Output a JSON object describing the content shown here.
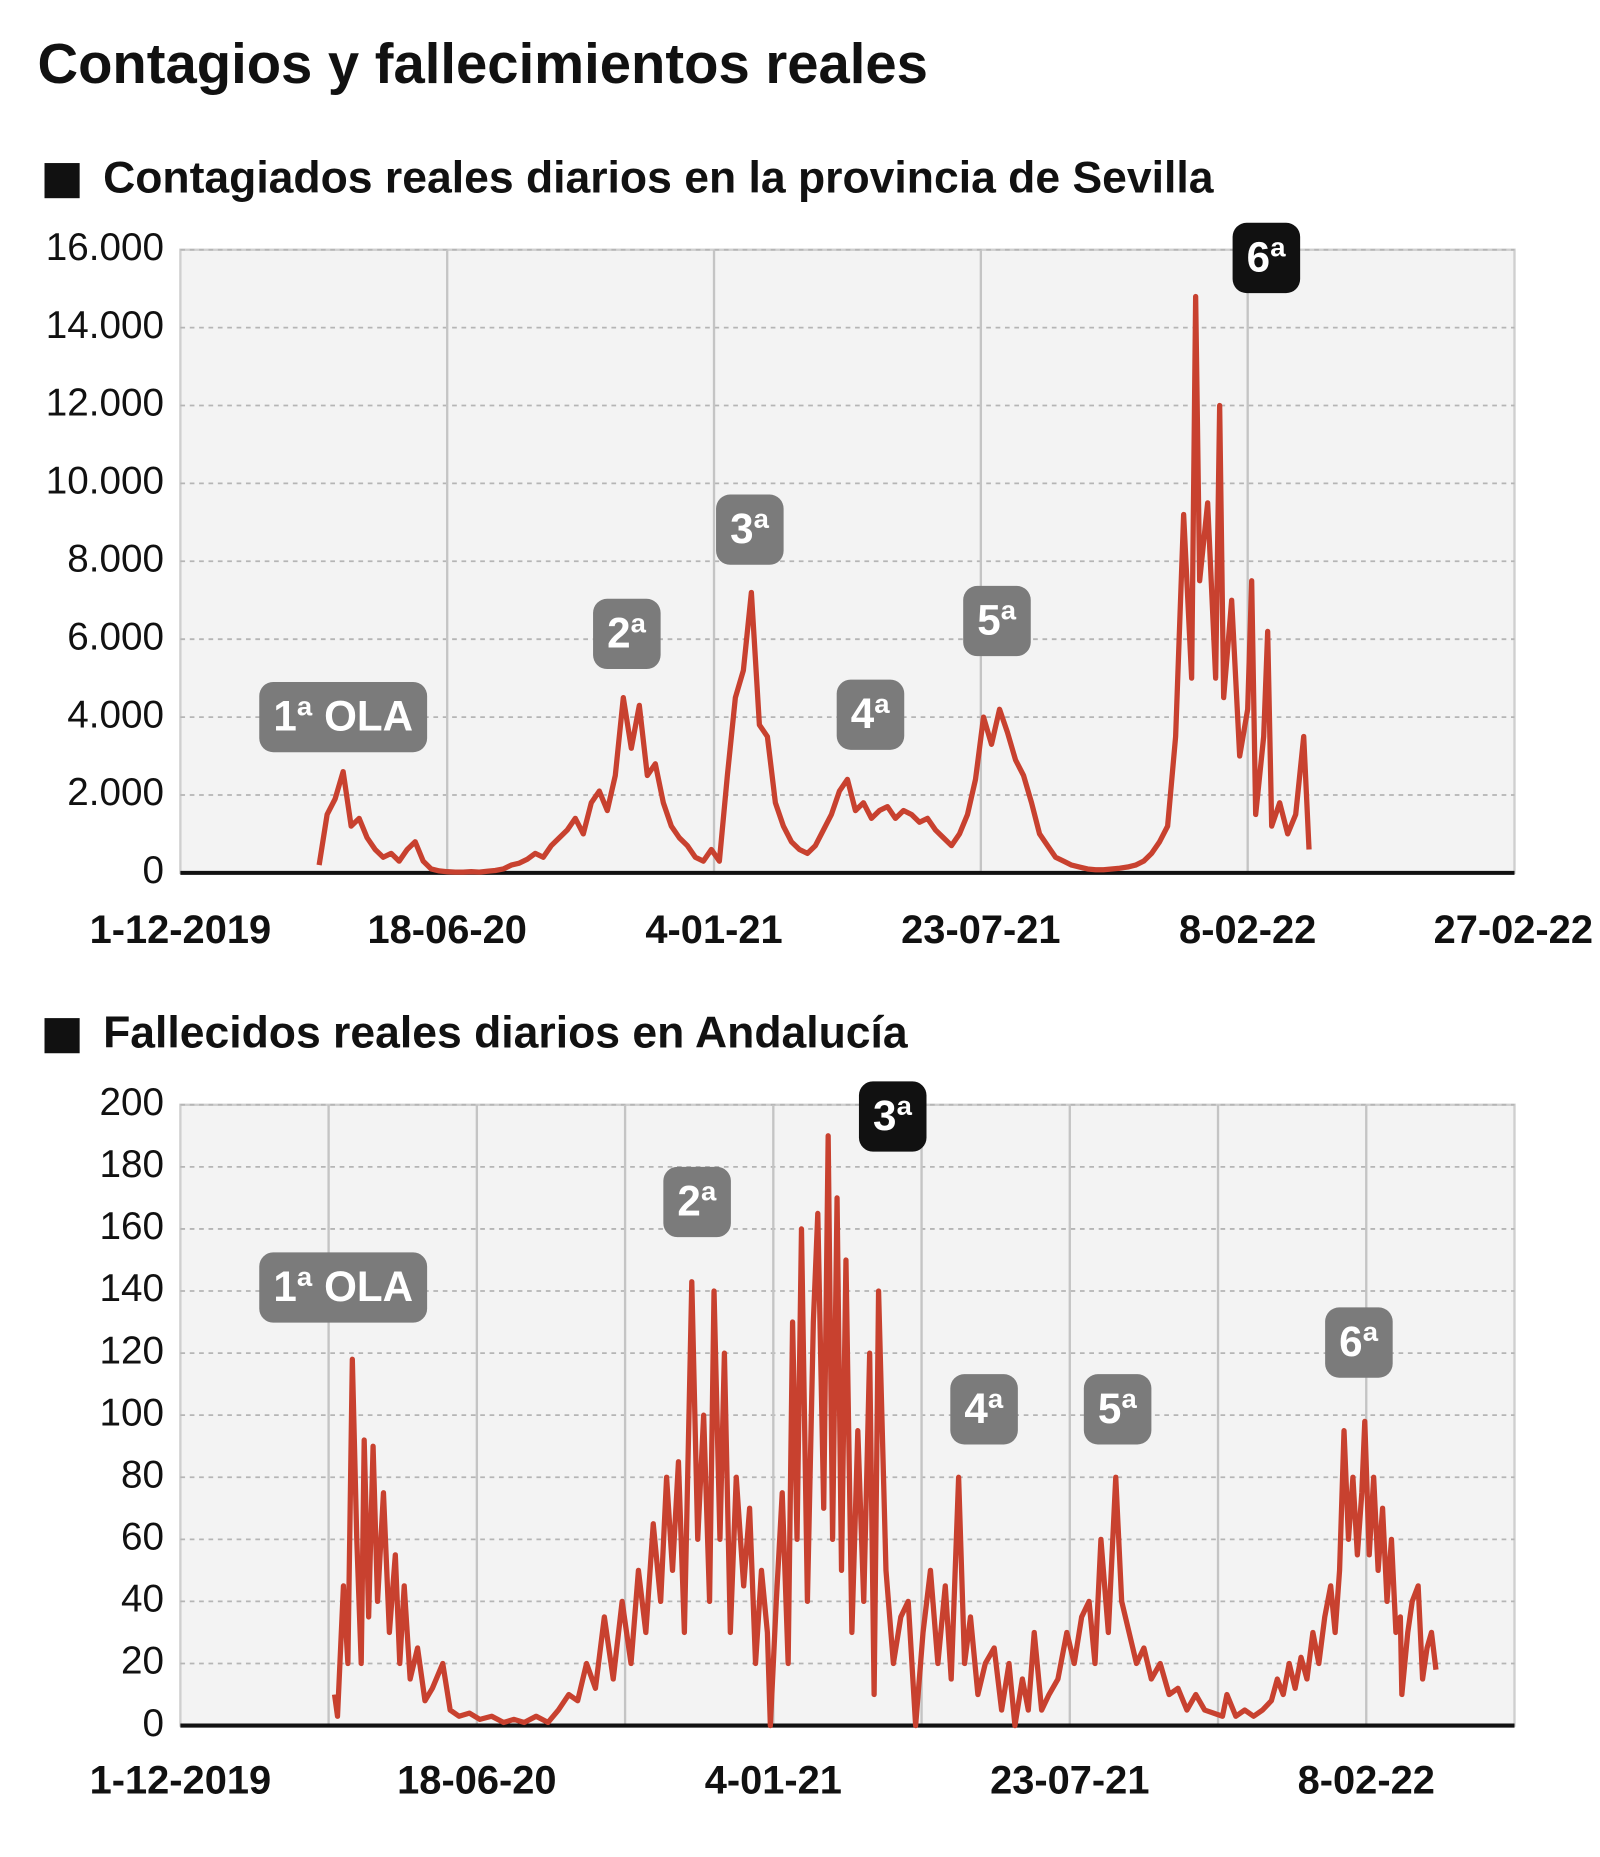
{
  "title": "Contagios y fallecimientos reales",
  "chart_data": [
    {
      "type": "line",
      "title": "Contagiados reales diarios en la provincia de Sevilla",
      "color": "#c8412f",
      "xlim": [
        0,
        1000
      ],
      "xticks": [
        {
          "value": 0,
          "label": "1-12-2019"
        },
        {
          "value": 200,
          "label": "18-06-20"
        },
        {
          "value": 400,
          "label": "4-01-21"
        },
        {
          "value": 600,
          "label": "23-07-21"
        },
        {
          "value": 800,
          "label": "8-02-22"
        },
        {
          "value": 1000,
          "label": "27-02-22"
        }
      ],
      "ylim": [
        0,
        16000
      ],
      "yticks": [
        0,
        {
          "value": 2000,
          "label": "2.000"
        },
        {
          "value": 4000,
          "label": "4.000"
        },
        {
          "value": 6000,
          "label": "6.000"
        },
        {
          "value": 8000,
          "label": "8.000"
        },
        {
          "value": 10000,
          "label": "10.000"
        },
        {
          "value": 12000,
          "label": "12.000"
        },
        {
          "value": 14000,
          "label": "14.000"
        },
        {
          "value": 16000,
          "label": "16.000"
        }
      ],
      "grid": true,
      "annotations": [
        {
          "text": "1ª OLA",
          "highlight": false
        },
        {
          "text": "2ª",
          "highlight": false
        },
        {
          "text": "3ª",
          "highlight": false
        },
        {
          "text": "4ª",
          "highlight": false
        },
        {
          "text": "5ª",
          "highlight": false
        },
        {
          "text": "6ª",
          "highlight": true
        }
      ],
      "x": [
        104,
        110,
        116,
        122,
        128,
        134,
        140,
        146,
        152,
        158,
        164,
        170,
        176,
        182,
        188,
        194,
        200,
        206,
        212,
        218,
        224,
        230,
        236,
        242,
        248,
        254,
        260,
        266,
        272,
        278,
        284,
        290,
        296,
        302,
        308,
        314,
        320,
        326,
        332,
        338,
        344,
        350,
        356,
        362,
        368,
        374,
        380,
        386,
        392,
        398,
        404,
        410,
        416,
        422,
        428,
        434,
        440,
        446,
        452,
        458,
        464,
        470,
        476,
        482,
        488,
        494,
        500,
        506,
        512,
        518,
        524,
        530,
        536,
        542,
        548,
        554,
        560,
        566,
        572,
        578,
        584,
        590,
        596,
        602,
        608,
        614,
        620,
        626,
        632,
        638,
        644,
        650,
        656,
        662,
        668,
        674,
        680,
        686,
        692,
        698,
        704,
        710,
        716,
        722,
        728,
        734,
        740,
        746,
        752,
        758,
        761,
        764,
        770,
        776,
        779,
        782,
        788,
        794,
        800,
        803,
        806,
        812,
        815,
        818,
        824,
        830,
        836,
        842,
        846
      ],
      "values": [
        200,
        1500,
        1900,
        2600,
        1200,
        1400,
        900,
        600,
        400,
        500,
        300,
        600,
        800,
        300,
        100,
        50,
        30,
        20,
        20,
        30,
        20,
        40,
        60,
        100,
        200,
        250,
        350,
        500,
        400,
        700,
        900,
        1100,
        1400,
        1000,
        1800,
        2100,
        1600,
        2500,
        4500,
        3200,
        4300,
        2500,
        2800,
        1800,
        1200,
        900,
        700,
        400,
        300,
        600,
        300,
        2500,
        4500,
        5200,
        7200,
        3800,
        3500,
        1800,
        1200,
        800,
        600,
        500,
        700,
        1100,
        1500,
        2100,
        2400,
        1600,
        1800,
        1400,
        1600,
        1700,
        1400,
        1600,
        1500,
        1300,
        1400,
        1100,
        900,
        700,
        1000,
        1500,
        2400,
        4000,
        3300,
        4200,
        3600,
        2900,
        2500,
        1800,
        1000,
        700,
        400,
        300,
        200,
        150,
        100,
        80,
        80,
        100,
        120,
        150,
        200,
        300,
        500,
        800,
        1200,
        3500,
        9200,
        5000,
        14800,
        7500,
        9500,
        5000,
        12000,
        4500,
        7000,
        3000,
        4200,
        7500,
        1500,
        3500,
        6200,
        1200,
        1800,
        1000,
        1500,
        3500,
        600
      ]
    },
    {
      "type": "line",
      "title": "Fallecidos reales diarios en Andalucía",
      "color": "#c8412f",
      "xlim": [
        0,
        900
      ],
      "xticks": [
        {
          "value": 0,
          "label": "1-12-2019"
        },
        {
          "value": 100,
          "label": null
        },
        {
          "value": 200,
          "label": "18-06-20"
        },
        {
          "value": 300,
          "label": null
        },
        {
          "value": 400,
          "label": "4-01-21"
        },
        {
          "value": 500,
          "label": null
        },
        {
          "value": 600,
          "label": "23-07-21"
        },
        {
          "value": 700,
          "label": null
        },
        {
          "value": 800,
          "label": "8-02-22"
        }
      ],
      "ylim": [
        0,
        200
      ],
      "yticks": [
        0,
        20,
        40,
        60,
        80,
        100,
        120,
        140,
        160,
        180,
        200
      ],
      "grid": true,
      "annotations": [
        {
          "text": "1ª OLA",
          "highlight": false
        },
        {
          "text": "2ª",
          "highlight": false
        },
        {
          "text": "3ª",
          "highlight": true
        },
        {
          "text": "4ª",
          "highlight": false
        },
        {
          "text": "5ª",
          "highlight": false
        },
        {
          "text": "6ª",
          "highlight": false
        }
      ],
      "x": [
        104,
        106,
        110,
        113,
        116,
        119,
        122,
        124,
        127,
        130,
        133,
        137,
        141,
        145,
        148,
        151,
        155,
        160,
        165,
        170,
        177,
        182,
        188,
        195,
        202,
        210,
        218,
        225,
        232,
        240,
        248,
        255,
        262,
        268,
        274,
        280,
        286,
        292,
        298,
        304,
        309,
        314,
        319,
        324,
        328,
        332,
        336,
        340,
        345,
        349,
        353,
        357,
        360,
        364,
        367,
        371,
        375,
        380,
        384,
        388,
        392,
        396,
        398,
        402,
        406,
        410,
        413,
        416,
        419,
        423,
        427,
        430,
        434,
        437,
        440,
        443,
        446,
        449,
        453,
        457,
        461,
        465,
        468,
        471,
        476,
        481,
        486,
        491,
        496,
        501,
        506,
        511,
        516,
        520,
        525,
        529,
        533,
        538,
        543,
        549,
        554,
        559,
        563,
        568,
        572,
        576,
        581,
        586,
        592,
        598,
        603,
        608,
        613,
        617,
        621,
        626,
        631,
        635,
        640,
        645,
        650,
        655,
        661,
        667,
        673,
        679,
        685,
        691,
        697,
        703,
        706,
        712,
        718,
        724,
        730,
        736,
        740,
        744,
        748,
        752,
        756,
        760,
        764,
        768,
        772,
        776,
        779,
        782,
        785,
        788,
        791,
        794,
        797,
        799,
        802,
        805,
        808,
        811,
        814,
        817,
        820,
        823,
        824,
        828,
        831,
        835,
        838,
        841,
        844,
        847
      ],
      "values": [
        10,
        3,
        45,
        20,
        118,
        60,
        20,
        92,
        35,
        90,
        40,
        75,
        30,
        55,
        20,
        45,
        15,
        25,
        8,
        12,
        20,
        5,
        3,
        4,
        2,
        3,
        1,
        2,
        1,
        3,
        1,
        5,
        10,
        8,
        20,
        12,
        35,
        15,
        40,
        20,
        50,
        30,
        65,
        40,
        80,
        50,
        85,
        30,
        143,
        60,
        100,
        40,
        140,
        60,
        120,
        30,
        80,
        45,
        70,
        20,
        50,
        30,
        0,
        40,
        75,
        20,
        130,
        60,
        160,
        40,
        130,
        165,
        70,
        190,
        60,
        170,
        50,
        150,
        30,
        95,
        40,
        120,
        10,
        140,
        50,
        20,
        35,
        40,
        0,
        30,
        50,
        20,
        45,
        15,
        80,
        20,
        35,
        10,
        20,
        25,
        5,
        20,
        0,
        15,
        5,
        30,
        5,
        10,
        15,
        30,
        20,
        35,
        40,
        20,
        60,
        30,
        80,
        40,
        30,
        20,
        25,
        15,
        20,
        10,
        12,
        5,
        10,
        5,
        4,
        3,
        10,
        3,
        5,
        3,
        5,
        8,
        15,
        10,
        20,
        12,
        22,
        15,
        30,
        20,
        35,
        45,
        30,
        50,
        95,
        60,
        80,
        55,
        75,
        98,
        55,
        80,
        50,
        70,
        40,
        60,
        30,
        35,
        10,
        30,
        40,
        45,
        15,
        25,
        30,
        18
      ]
    }
  ]
}
